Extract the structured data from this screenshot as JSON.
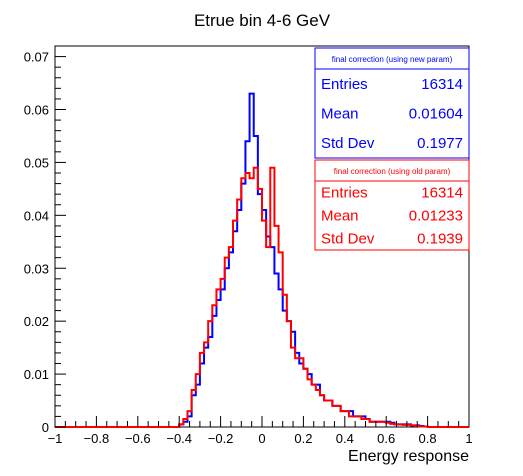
{
  "chart_data": {
    "type": "histogram",
    "title": "Etrue bin 4-6 GeV",
    "xlabel": "Energy response",
    "ylabel": "",
    "xlim": [
      -1,
      1
    ],
    "ylim": [
      0,
      0.072
    ],
    "grid": false,
    "x_ticks": [
      "−1",
      "−0.8",
      "−0.6",
      "−0.4",
      "−0.2",
      "0",
      "0.2",
      "0.4",
      "0.6",
      "0.8",
      "1"
    ],
    "x_tick_values": [
      -1,
      -0.8,
      -0.6,
      -0.4,
      -0.2,
      0,
      0.2,
      0.4,
      0.6,
      0.8,
      1
    ],
    "y_ticks": [
      "0",
      "0.01",
      "0.02",
      "0.03",
      "0.04",
      "0.05",
      "0.06",
      "0.07"
    ],
    "y_tick_values": [
      0,
      0.01,
      0.02,
      0.03,
      0.04,
      0.05,
      0.06,
      0.07
    ],
    "bin_edges_start": -1.0,
    "bin_width": 0.02,
    "series": [
      {
        "name": "final correction (using new param)",
        "color": "#0000ff",
        "values": [
          0,
          0,
          0,
          0,
          0,
          0,
          0,
          0,
          0,
          0,
          0,
          0,
          0,
          0,
          0,
          0,
          0,
          0,
          0,
          0,
          0,
          0,
          0,
          0,
          0,
          0,
          0,
          0,
          0,
          0,
          0.0005,
          0.001,
          0.002,
          0.006,
          0.008,
          0.012,
          0.015,
          0.017,
          0.021,
          0.024,
          0.026,
          0.03,
          0.033,
          0.037,
          0.041,
          0.046,
          0.054,
          0.063,
          0.055,
          0.044,
          0.041,
          0.036,
          0.034,
          0.029,
          0.026,
          0.022,
          0.02,
          0.018,
          0.014,
          0.012,
          0.011,
          0.01,
          0.008,
          0.008,
          0.006,
          0.005,
          0.005,
          0.004,
          0.004,
          0.003,
          0.003,
          0.003,
          0.002,
          0.002,
          0.002,
          0.0015,
          0.001,
          0.001,
          0.001,
          0.001,
          0.001,
          0.0008,
          0.0005,
          0.0005,
          0.0005,
          0.0005,
          0.0003,
          0.0003,
          0.0002,
          0.0001,
          0,
          0,
          0,
          0,
          0,
          0,
          0,
          0,
          0,
          0
        ]
      },
      {
        "name": "final correction (using old param)",
        "color": "#ff0000",
        "values": [
          0,
          0,
          0,
          0,
          0,
          0,
          0,
          0,
          0,
          0,
          0,
          0,
          0,
          0,
          0,
          0,
          0,
          0,
          0,
          0,
          0,
          0,
          0,
          0,
          0,
          0,
          0,
          0,
          0,
          0,
          0.0005,
          0.0015,
          0.003,
          0.007,
          0.01,
          0.014,
          0.016,
          0.02,
          0.023,
          0.026,
          0.028,
          0.032,
          0.034,
          0.039,
          0.043,
          0.047,
          0.048,
          0.047,
          0.049,
          0.045,
          0.039,
          0.034,
          0.049,
          0.038,
          0.033,
          0.025,
          0.02,
          0.015,
          0.013,
          0.013,
          0.011,
          0.009,
          0.008,
          0.007,
          0.006,
          0.005,
          0.005,
          0.004,
          0.004,
          0.003,
          0.003,
          0.002,
          0.002,
          0.002,
          0.0015,
          0.0015,
          0.001,
          0.001,
          0.001,
          0.001,
          0.0008,
          0.0006,
          0.0005,
          0.0005,
          0.0004,
          0.0004,
          0.0003,
          0.0002,
          0.0001,
          0.0001,
          0,
          0,
          0,
          0,
          0,
          0,
          0,
          0,
          0,
          0
        ]
      }
    ],
    "stats_boxes": [
      {
        "header": "final correction (using new param)",
        "color": "#0000ff",
        "rows": [
          {
            "label": "Entries",
            "value": "16314"
          },
          {
            "label": "Mean",
            "value": "0.01604"
          },
          {
            "label": "Std Dev",
            "value": "0.1977"
          }
        ]
      },
      {
        "header": "final correction (using old param)",
        "color": "#ff0000",
        "rows": [
          {
            "label": "Entries",
            "value": "16314"
          },
          {
            "label": "Mean",
            "value": "0.01233"
          },
          {
            "label": "Std Dev",
            "value": "0.1939"
          }
        ]
      }
    ]
  }
}
